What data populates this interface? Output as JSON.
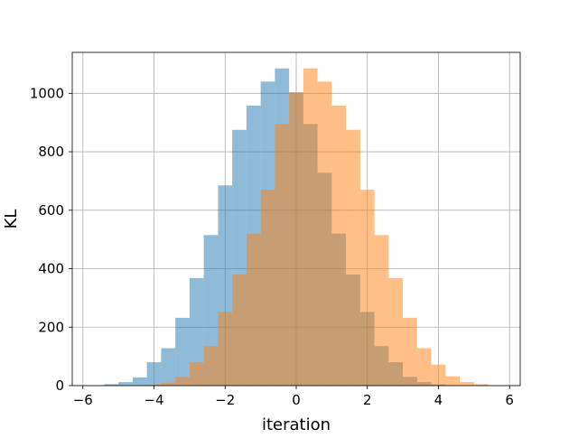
{
  "chart_data": {
    "type": "bar",
    "title": "",
    "xlabel": "iteration",
    "ylabel": "KL",
    "xlim": [
      -6.3,
      6.3
    ],
    "ylim": [
      0,
      1140
    ],
    "xticks": [
      -6,
      -4,
      -2,
      0,
      2,
      4,
      6
    ],
    "yticks": [
      0,
      200,
      400,
      600,
      800,
      1000
    ],
    "xtick_labels": [
      "−6",
      "−4",
      "−2",
      "0",
      "2",
      "4",
      "6"
    ],
    "ytick_labels": [
      "0",
      "200",
      "400",
      "600",
      "800",
      "1000"
    ],
    "grid": true,
    "legend": "none",
    "series": [
      {
        "color": "#1f77b4",
        "alpha": 0.5,
        "bins": [
          {
            "x0": -5.4,
            "x1": -5.0,
            "count": 5
          },
          {
            "x0": -5.0,
            "x1": -4.6,
            "count": 12
          },
          {
            "x0": -4.6,
            "x1": -4.2,
            "count": 28
          },
          {
            "x0": -4.2,
            "x1": -3.8,
            "count": 80
          },
          {
            "x0": -3.8,
            "x1": -3.4,
            "count": 128
          },
          {
            "x0": -3.4,
            "x1": -3.0,
            "count": 232
          },
          {
            "x0": -3.0,
            "x1": -2.6,
            "count": 368
          },
          {
            "x0": -2.6,
            "x1": -2.2,
            "count": 515
          },
          {
            "x0": -2.2,
            "x1": -1.8,
            "count": 685
          },
          {
            "x0": -1.8,
            "x1": -1.4,
            "count": 875
          },
          {
            "x0": -1.4,
            "x1": -1.0,
            "count": 958
          },
          {
            "x0": -1.0,
            "x1": -0.6,
            "count": 1040
          },
          {
            "x0": -0.6,
            "x1": -0.2,
            "count": 1085
          },
          {
            "x0": -0.2,
            "x1": 0.2,
            "count": 1003
          },
          {
            "x0": 0.2,
            "x1": 0.6,
            "count": 895
          },
          {
            "x0": 0.6,
            "x1": 1.0,
            "count": 728
          },
          {
            "x0": 1.0,
            "x1": 1.4,
            "count": 520
          },
          {
            "x0": 1.4,
            "x1": 1.8,
            "count": 380
          },
          {
            "x0": 1.8,
            "x1": 2.2,
            "count": 252
          },
          {
            "x0": 2.2,
            "x1": 2.6,
            "count": 135
          },
          {
            "x0": 2.6,
            "x1": 3.0,
            "count": 80
          },
          {
            "x0": 3.0,
            "x1": 3.4,
            "count": 30
          },
          {
            "x0": 3.4,
            "x1": 3.8,
            "count": 12
          },
          {
            "x0": 3.8,
            "x1": 4.2,
            "count": 4
          }
        ]
      },
      {
        "color": "#ff7f0e",
        "alpha": 0.5,
        "bins": [
          {
            "x0": -4.2,
            "x1": -3.8,
            "count": 3
          },
          {
            "x0": -3.8,
            "x1": -3.4,
            "count": 10
          },
          {
            "x0": -3.4,
            "x1": -3.0,
            "count": 30
          },
          {
            "x0": -3.0,
            "x1": -2.6,
            "count": 80
          },
          {
            "x0": -2.6,
            "x1": -2.2,
            "count": 135
          },
          {
            "x0": -2.2,
            "x1": -1.8,
            "count": 252
          },
          {
            "x0": -1.8,
            "x1": -1.4,
            "count": 380
          },
          {
            "x0": -1.4,
            "x1": -1.0,
            "count": 520
          },
          {
            "x0": -1.0,
            "x1": -0.6,
            "count": 670
          },
          {
            "x0": -0.6,
            "x1": -0.2,
            "count": 895
          },
          {
            "x0": -0.2,
            "x1": 0.2,
            "count": 1003
          },
          {
            "x0": 0.2,
            "x1": 0.6,
            "count": 1085
          },
          {
            "x0": 0.6,
            "x1": 1.0,
            "count": 1040
          },
          {
            "x0": 1.0,
            "x1": 1.4,
            "count": 958
          },
          {
            "x0": 1.4,
            "x1": 1.8,
            "count": 875
          },
          {
            "x0": 1.8,
            "x1": 2.2,
            "count": 670
          },
          {
            "x0": 2.2,
            "x1": 2.6,
            "count": 515
          },
          {
            "x0": 2.6,
            "x1": 3.0,
            "count": 368
          },
          {
            "x0": 3.0,
            "x1": 3.4,
            "count": 232
          },
          {
            "x0": 3.4,
            "x1": 3.8,
            "count": 128
          },
          {
            "x0": 3.8,
            "x1": 4.2,
            "count": 72
          },
          {
            "x0": 4.2,
            "x1": 4.6,
            "count": 32
          },
          {
            "x0": 4.6,
            "x1": 5.0,
            "count": 12
          },
          {
            "x0": 5.0,
            "x1": 5.4,
            "count": 5
          }
        ]
      }
    ]
  }
}
